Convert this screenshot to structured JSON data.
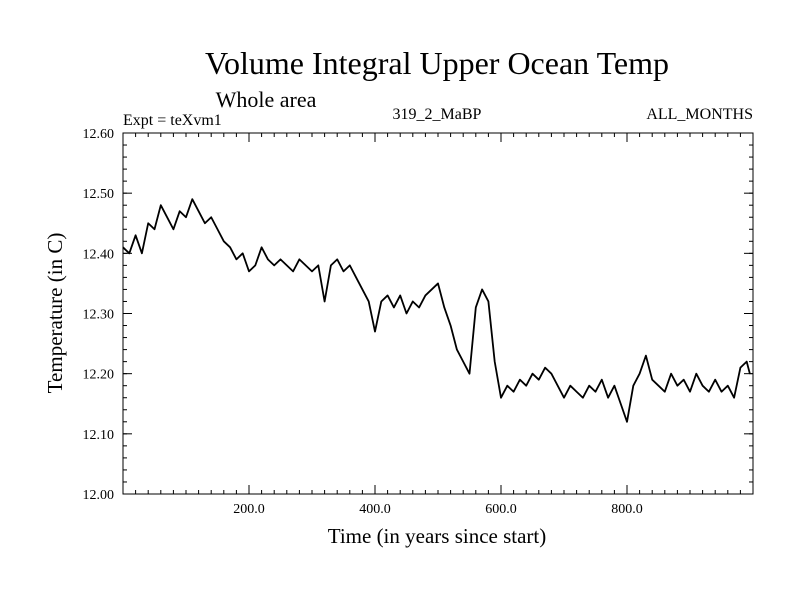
{
  "chart_data": {
    "type": "line",
    "title": "Volume Integral Upper Ocean Temp",
    "subtitle": "Whole area",
    "experiment": "Expt = teXvm1",
    "run_label": "319_2_MaBP",
    "period_label": "ALL_MONTHS",
    "xlabel": "Time (in years since start)",
    "ylabel": "Temperature (in C)",
    "xlim": [
      0,
      1000
    ],
    "ylim": [
      12.0,
      12.6
    ],
    "grid": false,
    "x_ticks": [
      200,
      400,
      600,
      800
    ],
    "x_tick_labels": [
      "200.0",
      "400.0",
      "600.0",
      "800.0"
    ],
    "y_ticks": [
      12.0,
      12.1,
      12.2,
      12.3,
      12.4,
      12.5,
      12.6
    ],
    "y_tick_labels": [
      "12.00",
      "12.10",
      "12.20",
      "12.30",
      "12.40",
      "12.50",
      "12.60"
    ],
    "series": [
      {
        "name": "Volume Integral Upper Ocean Temp",
        "color": "#000000",
        "x": [
          0,
          10,
          20,
          30,
          40,
          50,
          60,
          70,
          80,
          90,
          100,
          110,
          120,
          130,
          140,
          150,
          160,
          170,
          180,
          190,
          200,
          210,
          220,
          230,
          240,
          250,
          260,
          270,
          280,
          290,
          300,
          310,
          320,
          330,
          340,
          350,
          360,
          370,
          380,
          390,
          400,
          410,
          420,
          430,
          440,
          450,
          460,
          470,
          480,
          490,
          500,
          510,
          520,
          530,
          540,
          550,
          560,
          570,
          580,
          590,
          600,
          610,
          620,
          630,
          640,
          650,
          660,
          670,
          680,
          690,
          700,
          710,
          720,
          730,
          740,
          750,
          760,
          770,
          780,
          790,
          800,
          810,
          820,
          830,
          840,
          850,
          860,
          870,
          880,
          890,
          900,
          910,
          920,
          930,
          940,
          950,
          960,
          970,
          980,
          990,
          995
        ],
        "values": [
          12.41,
          12.4,
          12.43,
          12.4,
          12.45,
          12.44,
          12.48,
          12.46,
          12.44,
          12.47,
          12.46,
          12.49,
          12.47,
          12.45,
          12.46,
          12.44,
          12.42,
          12.41,
          12.39,
          12.4,
          12.37,
          12.38,
          12.41,
          12.39,
          12.38,
          12.39,
          12.38,
          12.37,
          12.39,
          12.38,
          12.37,
          12.38,
          12.32,
          12.38,
          12.39,
          12.37,
          12.38,
          12.36,
          12.34,
          12.32,
          12.27,
          12.32,
          12.33,
          12.31,
          12.33,
          12.3,
          12.32,
          12.31,
          12.33,
          12.34,
          12.35,
          12.31,
          12.28,
          12.24,
          12.22,
          12.2,
          12.31,
          12.34,
          12.32,
          12.22,
          12.16,
          12.18,
          12.17,
          12.19,
          12.18,
          12.2,
          12.19,
          12.21,
          12.2,
          12.18,
          12.16,
          12.18,
          12.17,
          12.16,
          12.18,
          12.17,
          12.19,
          12.16,
          12.18,
          12.15,
          12.12,
          12.18,
          12.2,
          12.23,
          12.19,
          12.18,
          12.17,
          12.2,
          12.18,
          12.19,
          12.17,
          12.2,
          12.18,
          12.17,
          12.19,
          12.17,
          12.18,
          12.16,
          12.21,
          12.22,
          12.2
        ]
      }
    ]
  }
}
